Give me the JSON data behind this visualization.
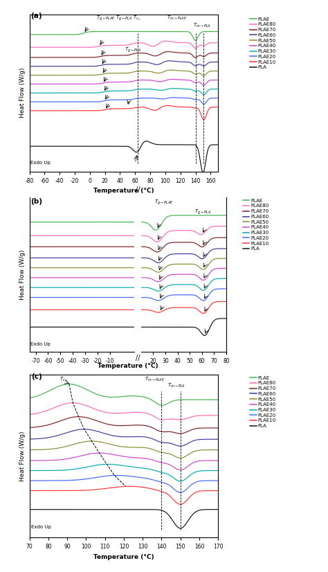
{
  "colors": {
    "PLAE": "#3cb54a",
    "PLAE80": "#ff69b4",
    "PLAE70": "#7b2020",
    "PLAE60": "#3b3b9a",
    "PLAE50": "#8b8b2a",
    "PLAE40": "#cc44cc",
    "PLAE30": "#00aaaa",
    "PLAE20": "#4466ff",
    "PLAE10": "#ff3333",
    "PLA": "#111111"
  },
  "labels": [
    "PLAE",
    "PLAE80",
    "PLAE70",
    "PLAE60",
    "PLAE50",
    "PLAE40",
    "PLAE30",
    "PLAE20",
    "PLAE10",
    "PLA"
  ]
}
